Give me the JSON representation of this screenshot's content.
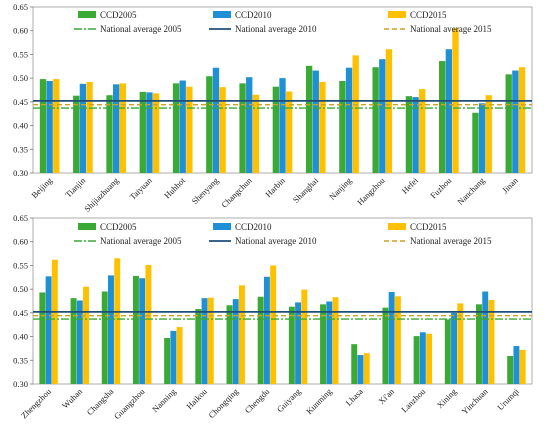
{
  "colors": {
    "ccd2005": "#3aa935",
    "ccd2010": "#1f8fd6",
    "ccd2015": "#ffc000",
    "avg2005": "#3aa935",
    "avg2010": "#1f4e79",
    "avg2015": "#c9a227"
  },
  "chart_data": [
    {
      "type": "bar",
      "ylim": [
        0.3,
        0.65
      ],
      "yticks": [
        "0.30",
        "0.35",
        "0.40",
        "0.45",
        "0.50",
        "0.55",
        "0.60",
        "0.65"
      ],
      "legend": {
        "ccd2005": "CCD2005",
        "ccd2010": "CCD2010",
        "ccd2015": "CCD2015",
        "avg2005": "National average 2005",
        "avg2010": "National average 2010",
        "avg2015": "National average 2015"
      },
      "categories": [
        "Beijing",
        "Tianjin",
        "Shijiazhuang",
        "Taiyuan",
        "Huhhot",
        "Shenyang",
        "Changchun",
        "Harbin",
        "Shanghai",
        "Nanjing",
        "Hangzhou",
        "Hefei",
        "Fuzhou",
        "Nanchang",
        "Jinan"
      ],
      "series": [
        {
          "name": "CCD2005",
          "color_key": "ccd2005",
          "values": [
            0.498,
            0.463,
            0.464,
            0.471,
            0.489,
            0.504,
            0.489,
            0.482,
            0.526,
            0.494,
            0.523,
            0.462,
            0.536,
            0.427,
            0.508
          ]
        },
        {
          "name": "CCD2010",
          "color_key": "ccd2010",
          "values": [
            0.494,
            0.488,
            0.487,
            0.47,
            0.495,
            0.522,
            0.502,
            0.5,
            0.516,
            0.522,
            0.54,
            0.46,
            0.561,
            0.447,
            0.516
          ]
        },
        {
          "name": "CCD2015",
          "color_key": "ccd2015",
          "values": [
            0.498,
            0.492,
            0.489,
            0.468,
            0.482,
            0.481,
            0.465,
            0.472,
            0.492,
            0.548,
            0.561,
            0.477,
            0.605,
            0.464,
            0.523
          ]
        }
      ],
      "reference_lines": [
        {
          "name": "National average 2005",
          "color_key": "avg2005",
          "style": "dashdot",
          "value": 0.437
        },
        {
          "name": "National average 2010",
          "color_key": "avg2010",
          "style": "solid",
          "value": 0.452
        },
        {
          "name": "National average 2015",
          "color_key": "avg2015",
          "style": "dashed",
          "value": 0.444
        }
      ]
    },
    {
      "type": "bar",
      "ylim": [
        0.3,
        0.65
      ],
      "yticks": [
        "0.30",
        "0.35",
        "0.40",
        "0.45",
        "0.50",
        "0.55",
        "0.60",
        "0.65"
      ],
      "legend": {
        "ccd2005": "CCD2005",
        "ccd2010": "CCD2010",
        "ccd2015": "CCD2015",
        "avg2005": "National average 2005",
        "avg2010": "National average 2010",
        "avg2015": "National average 2015"
      },
      "categories": [
        "Zhengzhou",
        "Wuhan",
        "Changsha",
        "Guangzhou",
        "Nanning",
        "Haikou",
        "Chongqing",
        "Chengdu",
        "Guiyang",
        "Kunming",
        "Lhasa",
        "Xi'an",
        "Lanzhou",
        "Xining",
        "Yinchuan",
        "Urumqi"
      ],
      "series": [
        {
          "name": "CCD2005",
          "color_key": "ccd2005",
          "values": [
            0.493,
            0.481,
            0.495,
            0.528,
            0.397,
            0.458,
            0.466,
            0.484,
            0.463,
            0.468,
            0.384,
            0.461,
            0.401,
            0.436,
            0.468,
            0.359
          ]
        },
        {
          "name": "CCD2010",
          "color_key": "ccd2010",
          "values": [
            0.527,
            0.476,
            0.529,
            0.523,
            0.412,
            0.481,
            0.479,
            0.526,
            0.472,
            0.474,
            0.361,
            0.494,
            0.409,
            0.45,
            0.495,
            0.38
          ]
        },
        {
          "name": "CCD2015",
          "color_key": "ccd2015",
          "values": [
            0.562,
            0.505,
            0.565,
            0.551,
            0.42,
            0.482,
            0.508,
            0.55,
            0.499,
            0.483,
            0.365,
            0.485,
            0.406,
            0.47,
            0.477,
            0.372
          ]
        }
      ],
      "reference_lines": [
        {
          "name": "National average 2005",
          "color_key": "avg2005",
          "style": "dashdot",
          "value": 0.437
        },
        {
          "name": "National average 2010",
          "color_key": "avg2010",
          "style": "solid",
          "value": 0.452
        },
        {
          "name": "National average 2015",
          "color_key": "avg2015",
          "style": "dashed",
          "value": 0.444
        }
      ]
    }
  ]
}
